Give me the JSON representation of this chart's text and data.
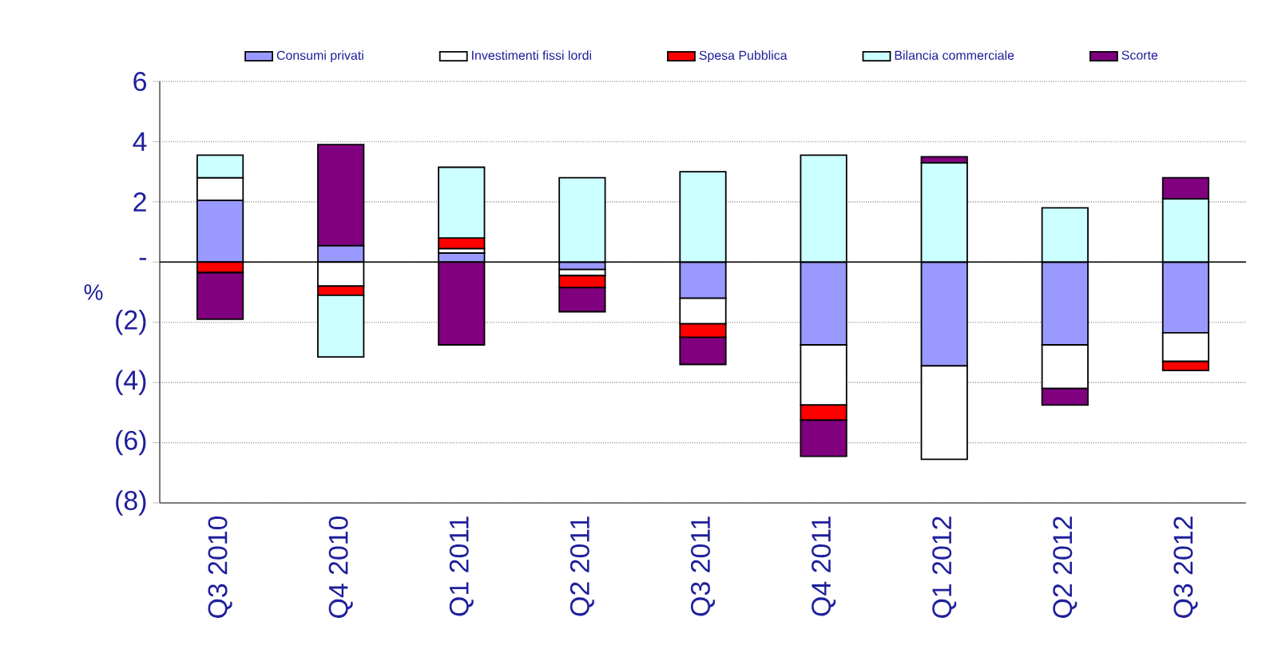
{
  "chart_data": {
    "type": "bar",
    "stacked": true,
    "ylabel": "%",
    "categories": [
      "Q3 2010",
      "Q4 2010",
      "Q1 2011",
      "Q2 2011",
      "Q3 2011",
      "Q4 2011",
      "Q1 2012",
      "Q2 2012",
      "Q3 2012"
    ],
    "series": [
      {
        "name": "Consumi privati",
        "color": "#9999ff",
        "values": [
          2.05,
          0.55,
          0.3,
          -0.25,
          -1.2,
          -2.75,
          -3.45,
          -2.75,
          -2.35
        ]
      },
      {
        "name": "Investimenti fissi lordi",
        "color": "#ffffff",
        "values": [
          0.75,
          -0.8,
          0.15,
          -0.2,
          -0.85,
          -2.0,
          -3.1,
          -1.45,
          -0.95
        ]
      },
      {
        "name": "Spesa Pubblica",
        "color": "#ff0000",
        "values": [
          -0.35,
          -0.3,
          0.35,
          -0.4,
          -0.45,
          -0.5,
          null,
          null,
          -0.3
        ]
      },
      {
        "name": "Bilancia commerciale",
        "color": "#ccffff",
        "values": [
          0.75,
          -2.05,
          2.35,
          2.8,
          3.0,
          3.55,
          3.3,
          1.8,
          2.1
        ]
      },
      {
        "name": "Scorte",
        "color": "#800080",
        "values": [
          -1.55,
          3.35,
          -2.75,
          -0.8,
          -0.9,
          -1.2,
          0.2,
          -0.55,
          0.7
        ]
      }
    ],
    "ylim": [
      -8,
      6
    ],
    "yticks": [
      6,
      4,
      2,
      {
        "value": 0,
        "label": "-"
      },
      {
        "value": -2,
        "label": "(2)"
      },
      {
        "value": -4,
        "label": "(4)"
      },
      {
        "value": -6,
        "label": "(6)"
      },
      {
        "value": -8,
        "label": "(8)"
      }
    ],
    "ref_lines": [
      {
        "axis": "y",
        "value": 0,
        "color": "#000000"
      }
    ],
    "grid": "y",
    "legend": "top"
  }
}
